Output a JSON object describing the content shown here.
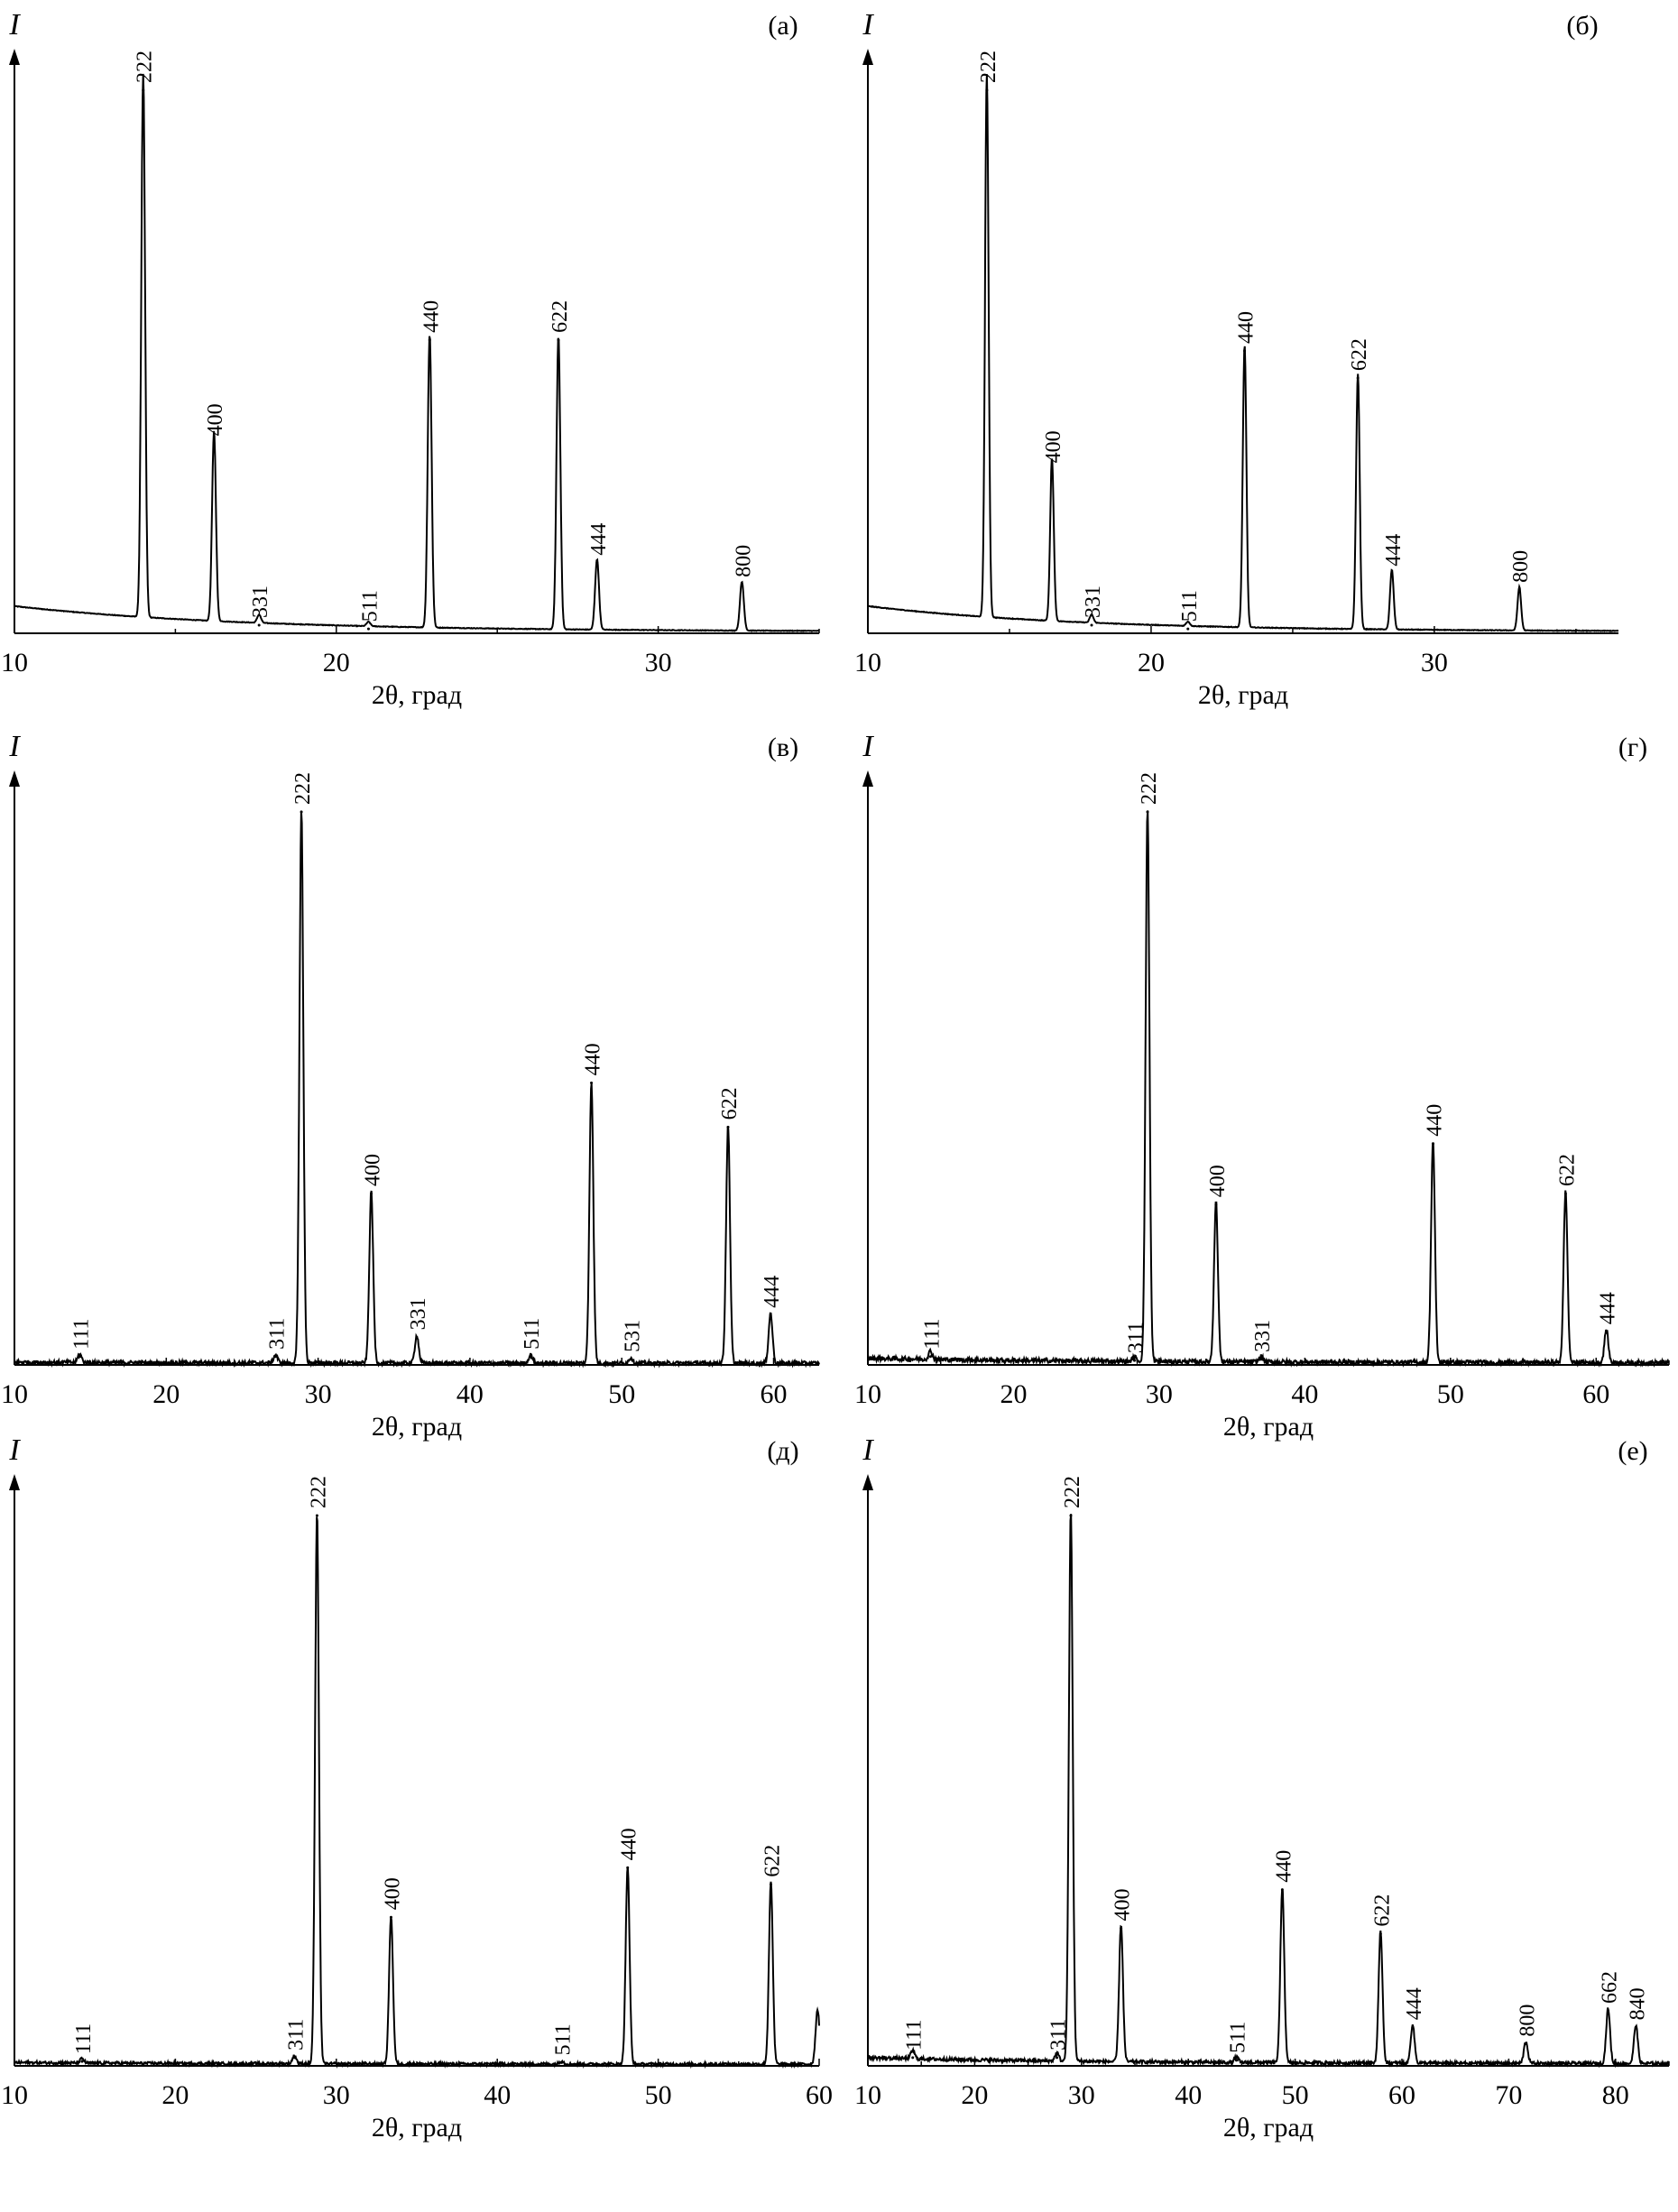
{
  "chart_data": [
    {
      "type": "line",
      "panel_label": "(а)",
      "ylabel": "I",
      "xlabel": "2θ, град",
      "xlim": [
        10,
        35
      ],
      "xticks": [
        10,
        20,
        30
      ],
      "ylim": [
        0,
        100
      ],
      "background": {
        "start": 5,
        "end": 0.3
      },
      "noise": 0.06,
      "series": [
        {
          "peaks": [
            [
              14.0,
              100
            ],
            [
              16.2,
              35
            ],
            [
              17.6,
              1.5
            ],
            [
              21.0,
              0.8
            ],
            [
              22.9,
              54
            ],
            [
              26.9,
              54
            ],
            [
              28.1,
              13
            ],
            [
              32.6,
              9
            ]
          ]
        }
      ],
      "peak_labels": [
        {
          "text": "222",
          "x": 14.0,
          "y": 100
        },
        {
          "text": "400",
          "x": 16.2,
          "y": 35
        },
        {
          "text": "331",
          "x": 17.6,
          "y": 1.5
        },
        {
          "text": "511",
          "x": 21.0,
          "y": 0.8
        },
        {
          "text": "440",
          "x": 22.9,
          "y": 54
        },
        {
          "text": "622",
          "x": 26.9,
          "y": 54
        },
        {
          "text": "444",
          "x": 28.1,
          "y": 13
        },
        {
          "text": "800",
          "x": 32.6,
          "y": 9
        }
      ]
    },
    {
      "type": "line",
      "panel_label": "(б)",
      "ylabel": "I",
      "xlabel": "2θ, град",
      "xlim": [
        10,
        36.5
      ],
      "xticks": [
        10,
        20,
        30
      ],
      "ylim": [
        0,
        100
      ],
      "background": {
        "start": 5,
        "end": 0.3
      },
      "noise": 0.06,
      "series": [
        {
          "peaks": [
            [
              14.2,
              100
            ],
            [
              16.5,
              30
            ],
            [
              17.9,
              1.5
            ],
            [
              21.3,
              0.8
            ],
            [
              23.3,
              52
            ],
            [
              27.3,
              47
            ],
            [
              28.5,
              11
            ],
            [
              33.0,
              8
            ]
          ]
        }
      ],
      "peak_labels": [
        {
          "text": "222",
          "x": 14.2,
          "y": 100
        },
        {
          "text": "400",
          "x": 16.5,
          "y": 30
        },
        {
          "text": "331",
          "x": 17.9,
          "y": 1.5
        },
        {
          "text": "511",
          "x": 21.3,
          "y": 0.8
        },
        {
          "text": "440",
          "x": 23.3,
          "y": 52
        },
        {
          "text": "622",
          "x": 27.3,
          "y": 47
        },
        {
          "text": "444",
          "x": 28.5,
          "y": 11
        },
        {
          "text": "800",
          "x": 33.0,
          "y": 8
        }
      ]
    },
    {
      "type": "line",
      "panel_label": "(в)",
      "ylabel": "I",
      "xlabel": "2θ, град",
      "xlim": [
        10,
        63
      ],
      "xticks": [
        10,
        20,
        30,
        40,
        50,
        60
      ],
      "ylim": [
        0,
        100
      ],
      "background": {
        "start": 0.5,
        "end": 0.3
      },
      "noise": 0.35,
      "series": [
        {
          "peaks": [
            [
              14.3,
              1.5
            ],
            [
              27.2,
              1.5
            ],
            [
              28.9,
              100
            ],
            [
              33.5,
              31
            ],
            [
              36.5,
              5
            ],
            [
              44.0,
              1.5
            ],
            [
              48.0,
              51
            ],
            [
              50.6,
              1
            ],
            [
              57.0,
              43
            ],
            [
              59.8,
              9
            ]
          ]
        }
      ],
      "peak_labels": [
        {
          "text": "111",
          "x": 14.3,
          "y": 1.5
        },
        {
          "text": "311",
          "x": 27.2,
          "y": 1.5
        },
        {
          "text": "222",
          "x": 28.9,
          "y": 100
        },
        {
          "text": "400",
          "x": 33.5,
          "y": 31
        },
        {
          "text": "331",
          "x": 36.5,
          "y": 5
        },
        {
          "text": "511",
          "x": 44.0,
          "y": 1.5
        },
        {
          "text": "440",
          "x": 48.0,
          "y": 51
        },
        {
          "text": "531",
          "x": 50.6,
          "y": 1
        },
        {
          "text": "622",
          "x": 57.0,
          "y": 43
        },
        {
          "text": "444",
          "x": 59.8,
          "y": 9
        }
      ]
    },
    {
      "type": "line",
      "panel_label": "(г)",
      "ylabel": "I",
      "xlabel": "2θ, град",
      "xlim": [
        10,
        65
      ],
      "xticks": [
        10,
        20,
        30,
        40,
        50,
        60
      ],
      "ylim": [
        0,
        100
      ],
      "background": {
        "start": 1.2,
        "end": 0.4
      },
      "noise": 0.4,
      "series": [
        {
          "peaks": [
            [
              14.3,
              1.5
            ],
            [
              28.3,
              0.8
            ],
            [
              29.2,
              100
            ],
            [
              33.9,
              29
            ],
            [
              37.0,
              1
            ],
            [
              48.8,
              40
            ],
            [
              57.9,
              31
            ],
            [
              60.7,
              6
            ]
          ]
        }
      ],
      "peak_labels": [
        {
          "text": "111",
          "x": 14.3,
          "y": 1.5
        },
        {
          "text": "311",
          "x": 28.3,
          "y": 0.8
        },
        {
          "text": "222",
          "x": 29.2,
          "y": 100
        },
        {
          "text": "400",
          "x": 33.9,
          "y": 29
        },
        {
          "text": "331",
          "x": 37.0,
          "y": 1
        },
        {
          "text": "440",
          "x": 48.8,
          "y": 40
        },
        {
          "text": "622",
          "x": 57.9,
          "y": 31
        },
        {
          "text": "444",
          "x": 60.7,
          "y": 6
        }
      ]
    },
    {
      "type": "line",
      "panel_label": "(д)",
      "ylabel": "I",
      "xlabel": "2θ, град",
      "xlim": [
        10,
        60
      ],
      "xticks": [
        10,
        20,
        30,
        40,
        50,
        60
      ],
      "ylim": [
        0,
        100
      ],
      "background": {
        "start": 0.6,
        "end": 0.3
      },
      "noise": 0.25,
      "series": [
        {
          "peaks": [
            [
              14.2,
              0.8
            ],
            [
              27.4,
              1.5
            ],
            [
              28.8,
              100
            ],
            [
              33.4,
              27
            ],
            [
              44.0,
              0.6
            ],
            [
              48.1,
              36
            ],
            [
              57.0,
              33
            ],
            [
              59.9,
              10
            ]
          ]
        }
      ],
      "peak_labels": [
        {
          "text": "111",
          "x": 14.2,
          "y": 0.8
        },
        {
          "text": "311",
          "x": 27.4,
          "y": 1.5
        },
        {
          "text": "222",
          "x": 28.8,
          "y": 100
        },
        {
          "text": "400",
          "x": 33.4,
          "y": 27
        },
        {
          "text": "511",
          "x": 44.0,
          "y": 0.6
        },
        {
          "text": "440",
          "x": 48.1,
          "y": 36
        },
        {
          "text": "622",
          "x": 57.0,
          "y": 33
        }
      ]
    },
    {
      "type": "line",
      "panel_label": "(е)",
      "ylabel": "I",
      "xlabel": "2θ, град",
      "xlim": [
        10,
        85
      ],
      "xticks": [
        10,
        20,
        30,
        40,
        50,
        60,
        70,
        80
      ],
      "ylim": [
        0,
        100
      ],
      "background": {
        "start": 1.5,
        "end": 0.4
      },
      "noise": 0.3,
      "series": [
        {
          "peaks": [
            [
              14.2,
              1.5
            ],
            [
              27.7,
              1.5
            ],
            [
              29.0,
              100
            ],
            [
              33.7,
              25
            ],
            [
              44.5,
              1
            ],
            [
              48.8,
              32
            ],
            [
              58.0,
              24
            ],
            [
              61.0,
              7
            ],
            [
              71.6,
              4
            ],
            [
              79.3,
              10
            ],
            [
              81.9,
              7
            ]
          ]
        }
      ],
      "peak_labels": [
        {
          "text": "111",
          "x": 14.2,
          "y": 1.5
        },
        {
          "text": "311",
          "x": 27.7,
          "y": 1.5
        },
        {
          "text": "222",
          "x": 29.0,
          "y": 100
        },
        {
          "text": "400",
          "x": 33.7,
          "y": 25
        },
        {
          "text": "511",
          "x": 44.5,
          "y": 1
        },
        {
          "text": "440",
          "x": 48.8,
          "y": 32
        },
        {
          "text": "622",
          "x": 58.0,
          "y": 24
        },
        {
          "text": "444",
          "x": 61.0,
          "y": 7
        },
        {
          "text": "800",
          "x": 71.6,
          "y": 4
        },
        {
          "text": "662",
          "x": 79.3,
          "y": 10
        },
        {
          "text": "840",
          "x": 81.9,
          "y": 7
        }
      ]
    }
  ]
}
